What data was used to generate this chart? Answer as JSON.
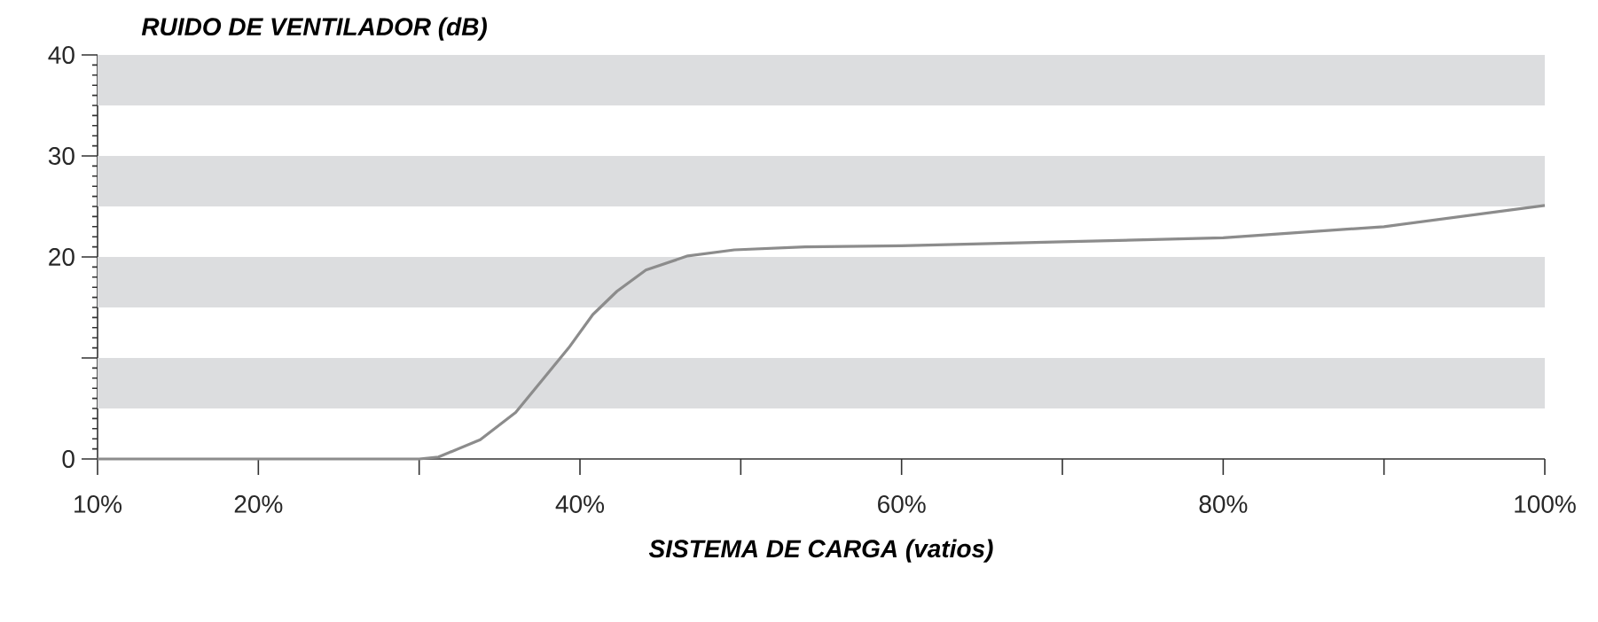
{
  "chart_data": {
    "type": "line",
    "xlabel": "SISTEMA DE CARGA (vatios)",
    "ylabel": "RUIDO DE VENTILADOR (dB)",
    "x": [
      10,
      20,
      30,
      31.2,
      33.8,
      36.0,
      37.8,
      39.3,
      40.8,
      42.3,
      44.1,
      46.7,
      49.6,
      54.0,
      60,
      70,
      80,
      90,
      100
    ],
    "series": [
      {
        "color": "#8c8c8c",
        "values": [
          0,
          0,
          0,
          0.2,
          1.9,
          4.6,
          8.1,
          11.0,
          14.3,
          16.6,
          18.7,
          20.1,
          20.7,
          21.0,
          21.1,
          21.5,
          21.9,
          23.0,
          25.1
        ]
      }
    ],
    "xlim": [
      10,
      100
    ],
    "ylim": [
      0,
      40
    ],
    "xticks": [
      {
        "value": 10,
        "label": "10%"
      },
      {
        "value": 20,
        "label": "20%"
      },
      {
        "value": 30,
        "label": null
      },
      {
        "value": 40,
        "label": "40%"
      },
      {
        "value": 50,
        "label": null
      },
      {
        "value": 60,
        "label": "60%"
      },
      {
        "value": 70,
        "label": null
      },
      {
        "value": 80,
        "label": "80%"
      },
      {
        "value": 90,
        "label": null
      },
      {
        "value": 100,
        "label": "100%"
      }
    ],
    "yticks": [
      0,
      {
        "value": 10,
        "label": null
      },
      20,
      30,
      40
    ],
    "bands": [
      {
        "axis": "y",
        "from": 5,
        "to": 10,
        "color": "#dcdddf"
      },
      {
        "axis": "y",
        "from": 15,
        "to": 20,
        "color": "#dcdddf"
      },
      {
        "axis": "y",
        "from": 25,
        "to": 30,
        "color": "#dcdddf"
      },
      {
        "axis": "y",
        "from": 35,
        "to": 40,
        "color": "#dcdddf"
      }
    ]
  }
}
